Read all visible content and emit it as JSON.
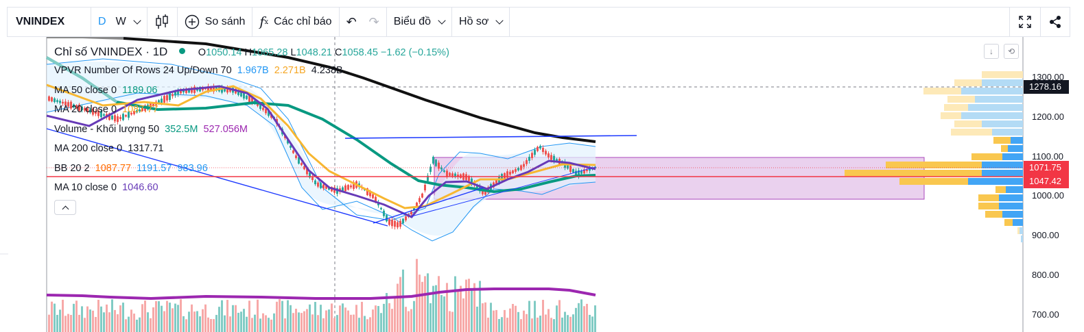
{
  "toolbar": {
    "symbol": "VNINDEX",
    "interval_d": "D",
    "interval_w": "W",
    "compare_label": "So sánh",
    "indicators_label": "Các chỉ báo",
    "chart_menu_label": "Biểu đồ",
    "profile_menu_label": "Hồ sơ"
  },
  "legend": {
    "title": "Chỉ số VNINDEX · 1D",
    "open_label": "O",
    "open": "1050.14",
    "high_label": "H",
    "high": "1065.28",
    "low_label": "L",
    "low": "1048.21",
    "close_label": "C",
    "close": "1058.45",
    "change": "−1.62 (−0.15%)",
    "vpvr_label": "VPVR Number Of Rows 24 Up/Down 70",
    "vpvr_up": "1.967B",
    "vpvr_down": "2.271B",
    "vpvr_total": "4.238B",
    "ma50_label": "MA 50 close 0",
    "ma50_value": "1189.06",
    "ma20_label": "MA 20 close 0",
    "ma20_value": "1087.77",
    "volume_label": "Volume - Khối lượng 50",
    "volume_value": "352.5M",
    "volume_ma": "527.056M",
    "ma200_label": "MA 200 close 0",
    "ma200_value": "1317.71",
    "bb_label": "BB 20 2",
    "bb_basis": "1087.77",
    "bb_upper": "1191.57",
    "bb_lower": "983.96",
    "ma10_label": "MA 10 close 0",
    "ma10_value": "1046.60"
  },
  "price_axis": {
    "ticks": [
      "1300.00",
      "1200.00",
      "1100.00",
      "1000.00",
      "900.00",
      "800.00",
      "700.00"
    ],
    "tag_crosshair": "1278.16",
    "tag_ma20": "1071.75",
    "tag_last": "1047.42"
  },
  "colors": {
    "up": "#26a69a",
    "down": "#ef5350",
    "ma10": "#673ab7",
    "ma20": "#f7b731",
    "ma50": "#089981",
    "ma200": "#111111",
    "bb": "#2196f3",
    "zone": "#ce93d8",
    "last_price": "#f23645"
  },
  "icons": {
    "candle": "candlestick-icon",
    "compare": "plus-circle-icon",
    "indicators": "fx-icon",
    "undo": "undo-icon",
    "redo": "redo-icon",
    "fullscreen": "fullscreen-icon",
    "share": "share-icon"
  }
}
